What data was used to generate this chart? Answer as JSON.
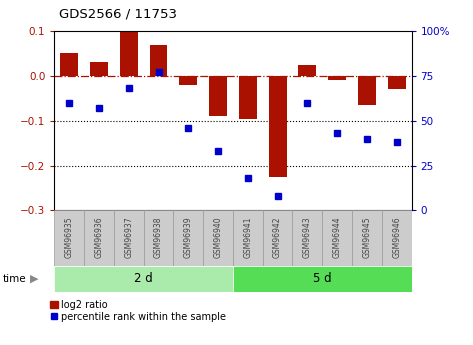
{
  "title": "GDS2566 / 11753",
  "samples": [
    "GSM96935",
    "GSM96936",
    "GSM96937",
    "GSM96938",
    "GSM96939",
    "GSM96940",
    "GSM96941",
    "GSM96942",
    "GSM96943",
    "GSM96944",
    "GSM96945",
    "GSM96946"
  ],
  "log2_ratio": [
    0.05,
    0.03,
    0.097,
    0.07,
    -0.02,
    -0.09,
    -0.095,
    -0.225,
    0.025,
    -0.01,
    -0.065,
    -0.03
  ],
  "percentile_rank": [
    60,
    57,
    68,
    77,
    46,
    33,
    18,
    8,
    60,
    43,
    40,
    38
  ],
  "group_labels": [
    "2 d",
    "5 d"
  ],
  "group_ranges": [
    [
      0,
      6
    ],
    [
      6,
      12
    ]
  ],
  "group_colors": [
    "#AAEAAA",
    "#55DD55"
  ],
  "bar_color": "#AA1100",
  "dot_color": "#0000CC",
  "ylim_left": [
    -0.3,
    0.1
  ],
  "ylim_right": [
    0,
    100
  ],
  "yticks_left": [
    -0.3,
    -0.2,
    -0.1,
    0.0,
    0.1
  ],
  "yticks_right": [
    0,
    25,
    50,
    75,
    100
  ],
  "dotted_lines": [
    -0.1,
    -0.2
  ],
  "bg_color": "#FFFFFF",
  "legend_bar_label": "log2 ratio",
  "legend_dot_label": "percentile rank within the sample",
  "plot_bg": "#FFFFFF",
  "sample_box_color": "#CCCCCC",
  "sample_box_edge": "#999999",
  "sample_text_color": "#444444"
}
